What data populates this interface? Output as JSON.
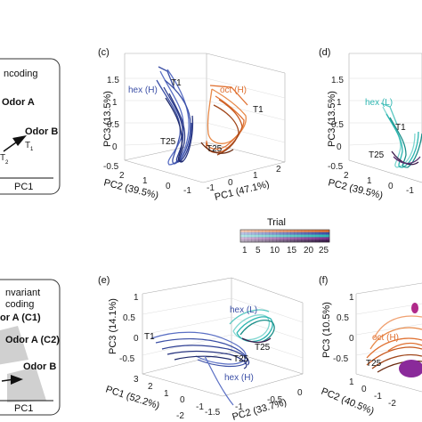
{
  "left_top_box": {
    "title": "ncoding",
    "odor_a": "Odor A",
    "odor_b": "Odor B",
    "t1": "T",
    "t1_sub": "1",
    "t2": "T",
    "t2_sub": "2",
    "axis": "PC1"
  },
  "left_bottom_box": {
    "title1": "nvariant",
    "title2": "coding",
    "odor_a_c1": "or A (C1)",
    "odor_a_c2": "Odor A (C2)",
    "odor_b": "Odor B",
    "axis": "PC1"
  },
  "panel_c": {
    "label": "(c)",
    "z_axis": "PC3 (13.5%)",
    "y_axis": "PC2 (39.5%)",
    "x_axis": "PC1 (47.1%)",
    "z_ticks": [
      "1.5",
      "1",
      "0.5",
      "0",
      "-0.5"
    ],
    "y_ticks": [
      "2",
      "1",
      "0",
      "-1"
    ],
    "x_ticks": [
      "-1",
      "-1",
      "0",
      "1",
      "2"
    ],
    "hex_label": "hex (H)",
    "oct_label": "oct (H)",
    "t1_a": "T1",
    "t1_b": "T1",
    "t25_a": "T25",
    "t25_b": "T25"
  },
  "panel_d": {
    "label": "(d)",
    "z_axis": "PC3 (13.5%)",
    "y_axis": "PC2 (39.5%)",
    "z_ticks": [
      "1.5",
      "1",
      "0.5",
      "0",
      "-0.5"
    ],
    "y_ticks": [
      "2",
      "1",
      "0",
      "-1"
    ],
    "hex_label": "hex (L)",
    "t1": "T1",
    "t25": "T25"
  },
  "colorbar": {
    "title": "Trial",
    "ticks": [
      "1",
      "5",
      "10",
      "15",
      "20",
      "25"
    ],
    "colors": [
      "#e07030",
      "#3b4fa6",
      "#2bb5b0",
      "#7a2f8a",
      "#3a1a4a"
    ]
  },
  "panel_e": {
    "label": "(e)",
    "z_axis": "PC3 (14.1%)",
    "x_axis": "PC1 (52.2%)",
    "y_axis": "PC2 (33.7%)",
    "z_ticks": [
      "1",
      "0.5",
      "0",
      "-0.5"
    ],
    "x_ticks": [
      "3",
      "2",
      "1",
      "0",
      "-1"
    ],
    "y_ticks": [
      "-2",
      "-1.5",
      "-1",
      "-0.5",
      "0"
    ],
    "hex_l": "hex (L)",
    "hex_h": "hex (H)",
    "t1": "T1",
    "t25_a": "T25",
    "t25_b": "T25"
  },
  "panel_f": {
    "label": "(f)",
    "z_axis": "PC3 (10.5%)",
    "y_axis": "PC2 (40.5%)",
    "oct_label": "oct (H)",
    "t25": "T25",
    "z_ticks": [
      "1",
      "0.5",
      "0",
      "-0.5"
    ],
    "y_ticks": [
      "1",
      "0",
      "-1",
      "-2"
    ]
  }
}
